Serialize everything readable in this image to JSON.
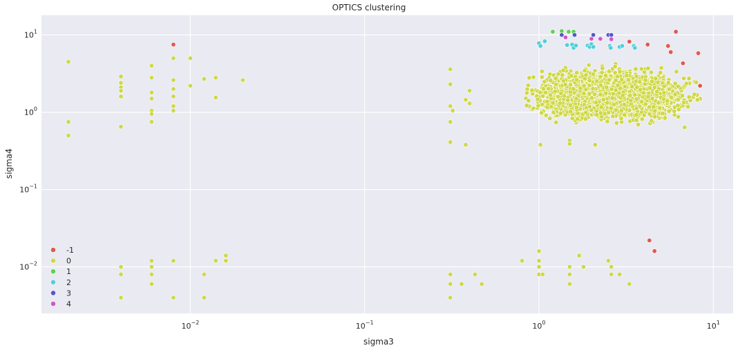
{
  "chart_data": {
    "type": "scatter",
    "title": "OPTICS clustering",
    "xlabel": "sigma3",
    "ylabel": "sigma4",
    "x_scale": "log",
    "y_scale": "log",
    "xlim": [
      0.0014,
      13
    ],
    "ylim": [
      0.0025,
      18
    ],
    "x_ticks": [
      {
        "value": 0.01,
        "base": "10",
        "exp": "−2"
      },
      {
        "value": 0.1,
        "base": "10",
        "exp": "−1"
      },
      {
        "value": 1,
        "base": "10",
        "exp": "0"
      },
      {
        "value": 10,
        "base": "10",
        "exp": "1"
      }
    ],
    "y_ticks": [
      {
        "value": 0.01,
        "base": "10",
        "exp": "−2"
      },
      {
        "value": 0.1,
        "base": "10",
        "exp": "−1"
      },
      {
        "value": 1,
        "base": "10",
        "exp": "0"
      },
      {
        "value": 10,
        "base": "10",
        "exp": "1"
      }
    ],
    "grid": true,
    "legend_position": "bottom-left",
    "dense_region": {
      "series": "0",
      "x_range": [
        0.55,
        8.5
      ],
      "y_range": [
        0.55,
        5.5
      ],
      "approx_points": 3000
    },
    "series": [
      {
        "name": "-1",
        "color": "#e0594c",
        "points": [
          [
            0.008,
            7.5
          ],
          [
            3.3,
            8.2
          ],
          [
            4.2,
            7.5
          ],
          [
            5.5,
            7.2
          ],
          [
            5.7,
            6.0
          ],
          [
            6.1,
            11.0
          ],
          [
            6.7,
            4.3
          ],
          [
            8.2,
            5.8
          ],
          [
            8.4,
            2.2
          ],
          [
            4.3,
            0.022
          ],
          [
            4.6,
            0.016
          ]
        ]
      },
      {
        "name": "0",
        "color": "#cfd846",
        "points": [
          [
            0.002,
            4.5
          ],
          [
            0.002,
            0.75
          ],
          [
            0.002,
            0.5
          ],
          [
            0.004,
            2.9
          ],
          [
            0.004,
            2.4
          ],
          [
            0.004,
            2.1
          ],
          [
            0.004,
            1.9
          ],
          [
            0.004,
            1.6
          ],
          [
            0.004,
            0.65
          ],
          [
            0.006,
            4.0
          ],
          [
            0.006,
            2.8
          ],
          [
            0.006,
            1.8
          ],
          [
            0.006,
            1.5
          ],
          [
            0.006,
            1.05
          ],
          [
            0.006,
            0.95
          ],
          [
            0.006,
            0.75
          ],
          [
            0.008,
            5.0
          ],
          [
            0.008,
            2.6
          ],
          [
            0.008,
            2.0
          ],
          [
            0.008,
            1.6
          ],
          [
            0.008,
            1.2
          ],
          [
            0.008,
            1.05
          ],
          [
            0.01,
            5.0
          ],
          [
            0.01,
            2.2
          ],
          [
            0.012,
            2.7
          ],
          [
            0.014,
            2.8
          ],
          [
            0.014,
            1.55
          ],
          [
            0.02,
            2.6
          ],
          [
            0.31,
            3.6
          ],
          [
            0.31,
            2.3
          ],
          [
            0.31,
            1.2
          ],
          [
            0.32,
            1.05
          ],
          [
            0.31,
            0.75
          ],
          [
            0.31,
            0.41
          ],
          [
            0.38,
            0.38
          ],
          [
            0.4,
            1.9
          ],
          [
            0.38,
            1.45
          ],
          [
            0.4,
            1.3
          ],
          [
            1.02,
            0.38
          ],
          [
            1.5,
            0.43
          ],
          [
            1.5,
            0.39
          ],
          [
            2.1,
            0.38
          ],
          [
            0.004,
            0.01
          ],
          [
            0.004,
            0.008
          ],
          [
            0.004,
            0.004
          ],
          [
            0.006,
            0.012
          ],
          [
            0.006,
            0.01
          ],
          [
            0.006,
            0.008
          ],
          [
            0.006,
            0.006
          ],
          [
            0.008,
            0.012
          ],
          [
            0.008,
            0.004
          ],
          [
            0.012,
            0.008
          ],
          [
            0.012,
            0.004
          ],
          [
            0.014,
            0.012
          ],
          [
            0.016,
            0.014
          ],
          [
            0.016,
            0.012
          ],
          [
            0.31,
            0.008
          ],
          [
            0.31,
            0.006
          ],
          [
            0.31,
            0.004
          ],
          [
            0.36,
            0.006
          ],
          [
            0.43,
            0.008
          ],
          [
            0.47,
            0.006
          ],
          [
            0.8,
            0.012
          ],
          [
            1.0,
            0.016
          ],
          [
            1.0,
            0.012
          ],
          [
            1.0,
            0.01
          ],
          [
            1.0,
            0.008
          ],
          [
            1.05,
            0.008
          ],
          [
            1.5,
            0.01
          ],
          [
            1.5,
            0.008
          ],
          [
            1.5,
            0.006
          ],
          [
            1.7,
            0.014
          ],
          [
            1.8,
            0.01
          ],
          [
            2.5,
            0.012
          ],
          [
            2.6,
            0.01
          ],
          [
            2.6,
            0.008
          ],
          [
            2.9,
            0.008
          ],
          [
            3.3,
            0.006
          ]
        ]
      },
      {
        "name": "1",
        "color": "#5dd152",
        "points": [
          [
            1.2,
            11.0
          ],
          [
            1.35,
            11.2
          ],
          [
            1.48,
            11.0
          ],
          [
            1.58,
            11.0
          ]
        ]
      },
      {
        "name": "2",
        "color": "#4fcfd8",
        "points": [
          [
            1.0,
            7.8
          ],
          [
            1.02,
            7.2
          ],
          [
            1.08,
            8.3
          ],
          [
            1.45,
            7.4
          ],
          [
            1.55,
            7.5
          ],
          [
            1.58,
            6.8
          ],
          [
            1.63,
            7.3
          ],
          [
            1.9,
            7.3
          ],
          [
            1.95,
            7.0
          ],
          [
            2.0,
            7.6
          ],
          [
            2.05,
            7.0
          ],
          [
            2.55,
            7.2
          ],
          [
            2.58,
            6.8
          ],
          [
            2.9,
            7.0
          ],
          [
            3.0,
            7.2
          ],
          [
            3.5,
            7.2
          ],
          [
            3.55,
            6.8
          ]
        ]
      },
      {
        "name": "3",
        "color": "#5656cf",
        "points": [
          [
            1.35,
            10.0
          ],
          [
            1.6,
            10.0
          ],
          [
            2.05,
            10.0
          ],
          [
            2.5,
            10.0
          ],
          [
            2.6,
            10.0
          ]
        ]
      },
      {
        "name": "4",
        "color": "#d157c6",
        "points": [
          [
            1.42,
            9.3
          ],
          [
            2.0,
            8.9
          ],
          [
            2.25,
            8.9
          ],
          [
            2.6,
            8.8
          ]
        ]
      }
    ]
  }
}
